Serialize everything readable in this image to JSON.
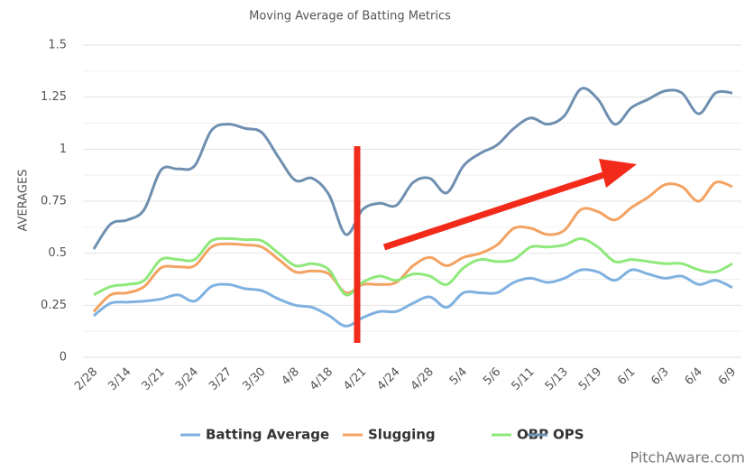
{
  "chart_data": {
    "type": "line",
    "title": "Moving Average of Batting Metrics",
    "y_label": "AVERAGES",
    "watermark": "PitchAware.com",
    "categories": [
      "2/28",
      null,
      "3/14",
      null,
      "3/21",
      null,
      "3/24",
      null,
      "3/27",
      null,
      "3/30",
      null,
      "4/8",
      null,
      "4/18",
      null,
      "4/21",
      null,
      "4/24",
      null,
      "4/28",
      null,
      "5/4",
      null,
      "5/6",
      null,
      "5/11",
      null,
      "5/13",
      null,
      "5/19",
      null,
      "6/1",
      null,
      "6/3",
      null,
      "6/4",
      null,
      "6/9"
    ],
    "series": [
      {
        "name": "Batting Average",
        "color": "#7fb1e0",
        "values": [
          0.2,
          0.26,
          0.265,
          0.27,
          0.28,
          0.3,
          0.27,
          0.34,
          0.35,
          0.33,
          0.32,
          0.28,
          0.25,
          0.24,
          0.2,
          0.15,
          0.19,
          0.22,
          0.22,
          0.26,
          0.29,
          0.24,
          0.31,
          0.31,
          0.31,
          0.36,
          0.38,
          0.36,
          0.38,
          0.42,
          0.41,
          0.37,
          0.42,
          0.4,
          0.38,
          0.39,
          0.35,
          0.37,
          0.335
        ]
      },
      {
        "name": "Slugging",
        "color": "#f4a261",
        "values": [
          0.22,
          0.3,
          0.31,
          0.34,
          0.43,
          0.435,
          0.44,
          0.53,
          0.545,
          0.54,
          0.53,
          0.47,
          0.41,
          0.415,
          0.4,
          0.31,
          0.35,
          0.35,
          0.36,
          0.44,
          0.48,
          0.44,
          0.48,
          0.5,
          0.54,
          0.62,
          0.62,
          0.59,
          0.61,
          0.71,
          0.7,
          0.66,
          0.72,
          0.77,
          0.83,
          0.82,
          0.75,
          0.84,
          0.82
        ]
      },
      {
        "name": "OBP",
        "color": "#8ee87a",
        "values": [
          0.3,
          0.34,
          0.35,
          0.37,
          0.47,
          0.47,
          0.47,
          0.56,
          0.57,
          0.565,
          0.56,
          0.5,
          0.44,
          0.45,
          0.42,
          0.3,
          0.36,
          0.39,
          0.37,
          0.4,
          0.39,
          0.35,
          0.43,
          0.47,
          0.46,
          0.47,
          0.53,
          0.53,
          0.54,
          0.57,
          0.53,
          0.46,
          0.47,
          0.46,
          0.45,
          0.45,
          0.42,
          0.41,
          0.45
        ]
      },
      {
        "name": "OPS",
        "color": "#6e8fb0",
        "values": [
          0.52,
          0.64,
          0.66,
          0.71,
          0.9,
          0.905,
          0.92,
          1.09,
          1.12,
          1.1,
          1.08,
          0.96,
          0.85,
          0.86,
          0.78,
          0.59,
          0.71,
          0.74,
          0.73,
          0.84,
          0.86,
          0.79,
          0.92,
          0.98,
          1.02,
          1.1,
          1.15,
          1.12,
          1.16,
          1.29,
          1.24,
          1.12,
          1.2,
          1.24,
          1.28,
          1.27,
          1.17,
          1.27,
          1.27
        ]
      }
    ],
    "ylim": [
      0,
      1.5
    ],
    "yticks": [
      0,
      0.25,
      0.5,
      0.75,
      1,
      1.25,
      1.5
    ],
    "minor_yticks": [
      0.125,
      0.375,
      0.625,
      0.875,
      1.125,
      1.375
    ],
    "grid": true,
    "legend": "bottom"
  }
}
